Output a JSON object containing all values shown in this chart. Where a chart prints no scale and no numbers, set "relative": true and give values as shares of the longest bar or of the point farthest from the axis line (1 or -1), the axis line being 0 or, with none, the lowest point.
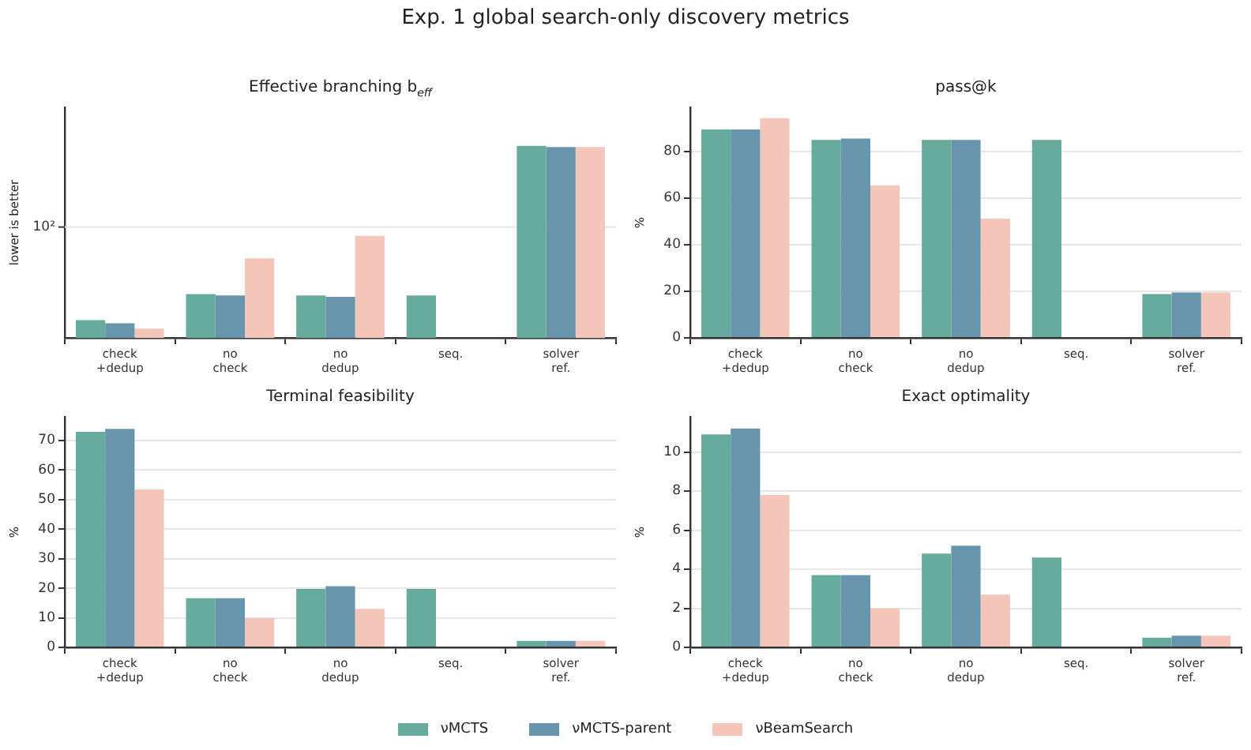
{
  "chart_data": [
    {
      "type": "bar",
      "title": "Effective branching b$_{eff}$",
      "ylabel": "lower is better",
      "relative": true,
      "legend": "bottom",
      "ref_lines": [
        {
          "axis": "y",
          "value": 0.577,
          "color": "#e6e6e6"
        }
      ],
      "annotations": [
        "Exp. 1 global search-only discovery metrics",
        "10²"
      ],
      "categories": [
        "check\n+dedup",
        "no\ncheck",
        "no\ndedup",
        "seq.",
        "solver\nref."
      ],
      "series": [
        {
          "name": "νMCTS",
          "color": "#67ab9f",
          "values": [
            0.092,
            0.228,
            0.221,
            0.221,
            1.0
          ]
        },
        {
          "name": "νMCTS-parent",
          "color": "#6795ae",
          "values": [
            0.076,
            0.221,
            0.214,
            null,
            0.993
          ]
        },
        {
          "name": "νBeamSearch",
          "color": "#f4c6ba",
          "values": [
            0.048,
            0.414,
            0.531,
            null,
            0.993
          ]
        }
      ]
    },
    {
      "type": "bar",
      "title": "pass@k",
      "ylabel": "%",
      "grid": "y",
      "categories": [
        "check\n+dedup",
        "no\ncheck",
        "no\ndedup",
        "seq.",
        "solver\nref."
      ],
      "ylim": [
        0,
        99
      ],
      "yticks": [
        0,
        20,
        40,
        60,
        80
      ],
      "series": [
        {
          "color": "#67ab9f",
          "values": [
            89.5,
            85.0,
            85.0,
            85.0,
            18.8
          ]
        },
        {
          "color": "#6795ae",
          "values": [
            89.5,
            85.6,
            85.0,
            null,
            19.5
          ]
        },
        {
          "color": "#f4c6ba",
          "values": [
            94.3,
            65.5,
            51.2,
            null,
            19.5
          ]
        }
      ]
    },
    {
      "type": "bar",
      "title": "Terminal feasibility",
      "ylabel": "%",
      "grid": "y",
      "categories": [
        "check\n+dedup",
        "no\ncheck",
        "no\ndedup",
        "seq.",
        "solver\nref."
      ],
      "ylim": [
        0,
        78
      ],
      "yticks": [
        0,
        10,
        20,
        30,
        40,
        50,
        60,
        70
      ],
      "series": [
        {
          "color": "#67ab9f",
          "values": [
            72.9,
            16.6,
            19.8,
            19.8,
            2.2
          ]
        },
        {
          "color": "#6795ae",
          "values": [
            73.9,
            16.6,
            20.7,
            null,
            2.2
          ]
        },
        {
          "color": "#f4c6ba",
          "values": [
            53.4,
            9.9,
            13.0,
            null,
            2.2
          ]
        }
      ]
    },
    {
      "type": "bar",
      "title": "Exact optimality",
      "ylabel": "%",
      "grid": "y",
      "categories": [
        "check\n+dedup",
        "no\ncheck",
        "no\ndedup",
        "seq.",
        "solver\nref."
      ],
      "ylim": [
        0,
        11.8
      ],
      "yticks": [
        0,
        2,
        4,
        6,
        8,
        10
      ],
      "series": [
        {
          "color": "#67ab9f",
          "values": [
            10.9,
            3.7,
            4.8,
            4.6,
            0.5
          ]
        },
        {
          "color": "#6795ae",
          "values": [
            11.2,
            3.7,
            5.2,
            null,
            0.6
          ]
        },
        {
          "color": "#f4c6ba",
          "values": [
            7.8,
            2.0,
            2.7,
            null,
            0.6
          ]
        }
      ]
    }
  ]
}
